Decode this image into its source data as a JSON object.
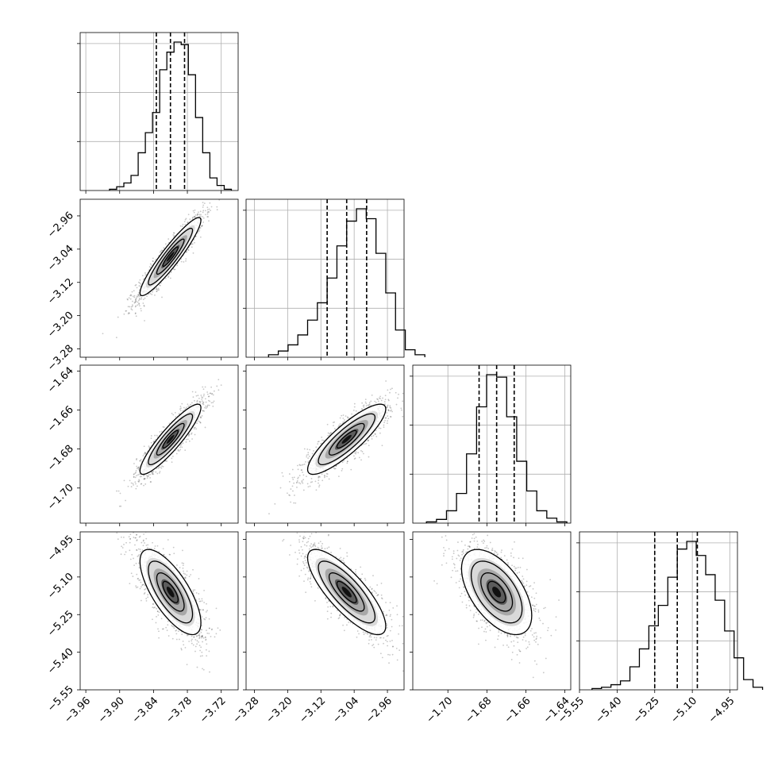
{
  "chart_data": {
    "type": "corner",
    "grid": true,
    "n_params": 4,
    "params": [
      {
        "range": [
          -3.97,
          -3.69
        ],
        "ticks": [
          -3.96,
          -3.9,
          -3.84,
          -3.78,
          -3.72
        ],
        "tick_labels": [
          "−3.96",
          "−3.90",
          "−3.84",
          "−3.78",
          "−3.72"
        ],
        "quantiles": [
          -3.835,
          -3.81,
          -3.785
        ],
        "mean": -3.81,
        "sd": 0.027
      },
      {
        "range": [
          -3.3,
          -2.92
        ],
        "ticks": [
          -3.28,
          -3.2,
          -3.12,
          -3.04,
          -2.96
        ],
        "tick_labels": [
          "−3.28",
          "−3.20",
          "−3.12",
          "−3.04",
          "−2.96"
        ],
        "quantiles": [
          -3.105,
          -3.058,
          -3.01
        ],
        "mean": -3.058,
        "sd": 0.047
      },
      {
        "range": [
          -1.718,
          -1.637
        ],
        "ticks": [
          -1.7,
          -1.68,
          -1.66,
          -1.64
        ],
        "tick_labels": [
          "−1.70",
          "−1.68",
          "−1.66",
          "−1.64"
        ],
        "quantiles": [
          -1.684,
          -1.675,
          -1.666
        ],
        "mean": -1.675,
        "sd": 0.009
      },
      {
        "range": [
          -5.55,
          -4.92
        ],
        "ticks": [
          -5.55,
          -5.4,
          -5.25,
          -5.1,
          -4.95
        ],
        "tick_labels": [
          "−5.55",
          "−5.40",
          "−5.25",
          "−5.10",
          "−4.95"
        ],
        "quantiles": [
          -5.25,
          -5.16,
          -5.08
        ],
        "mean": -5.16,
        "sd": 0.085
      }
    ],
    "histograms": [
      {
        "counts": [
          1,
          3,
          6,
          12,
          30,
          46,
          62,
          96,
          110,
          118,
          116,
          92,
          58,
          30,
          10,
          4,
          1
        ]
      },
      {
        "counts": [
          2,
          5,
          10,
          18,
          30,
          44,
          64,
          90,
          110,
          120,
          112,
          84,
          52,
          22,
          6,
          2
        ]
      },
      {
        "counts": [
          1,
          3,
          10,
          24,
          56,
          94,
          120,
          118,
          86,
          50,
          26,
          10,
          4,
          1
        ]
      },
      {
        "counts": [
          1,
          2,
          4,
          7,
          18,
          32,
          50,
          66,
          88,
          110,
          116,
          105,
          90,
          70,
          46,
          25,
          8,
          2
        ]
      }
    ],
    "correlations": [
      {
        "row": 1,
        "col": 0,
        "rho": 0.93
      },
      {
        "row": 2,
        "col": 0,
        "rho": 0.9
      },
      {
        "row": 2,
        "col": 1,
        "rho": 0.86
      },
      {
        "row": 3,
        "col": 0,
        "rho": -0.72
      },
      {
        "row": 3,
        "col": 1,
        "rho": -0.8
      },
      {
        "row": 3,
        "col": 2,
        "rho": -0.55
      }
    ]
  }
}
